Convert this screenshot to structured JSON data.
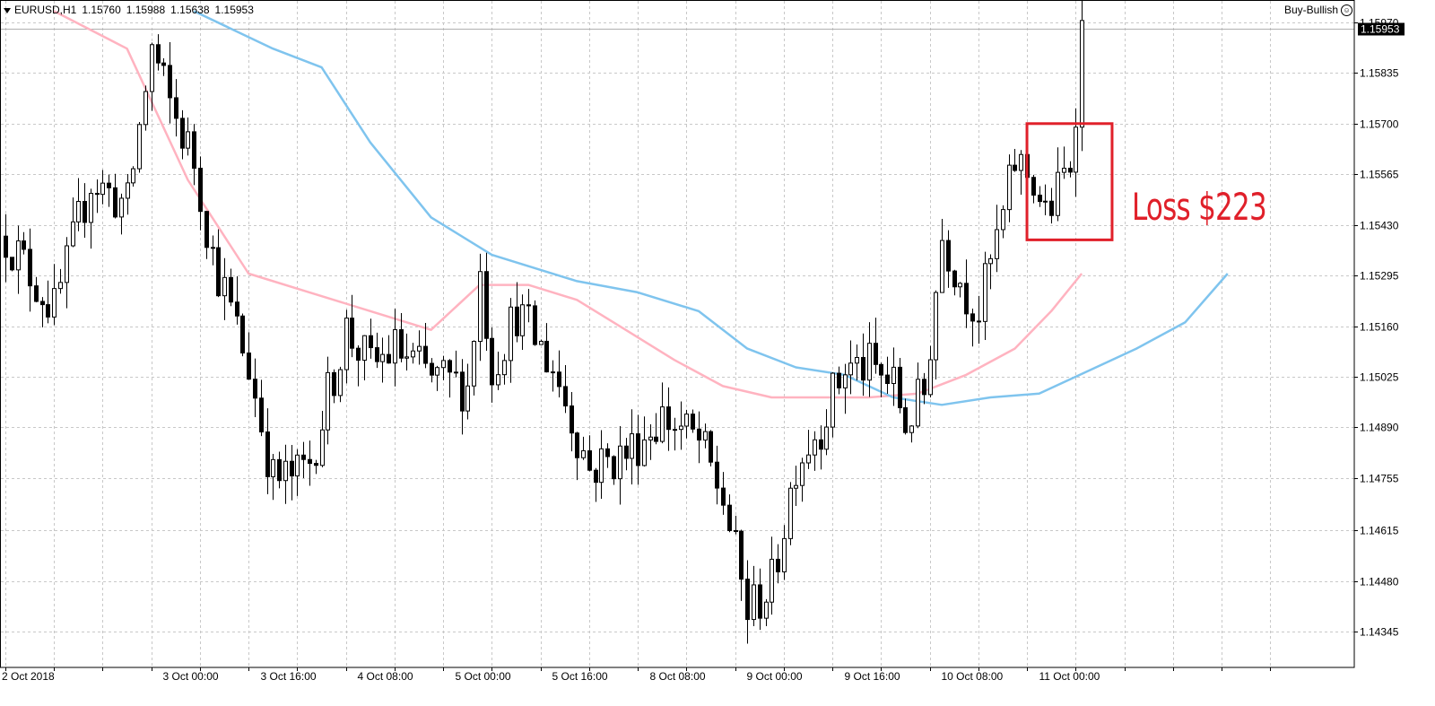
{
  "header": {
    "symbol": "EURUSD,H1",
    "open": "1.15760",
    "high": "1.15988",
    "low": "1.15638",
    "close": "1.15953"
  },
  "expert": {
    "name": "Buy-Bullish",
    "icon": "smiley-icon"
  },
  "annotation": {
    "text": "Loss $223",
    "color": "#e0202a"
  },
  "colors": {
    "bull_body": "#ffffff",
    "bear_body": "#000000",
    "ma_fast": "#ffb3c0",
    "ma_slow": "#7fc4ee",
    "grid": "#c8c8c8",
    "price_tag_bg": "#000000",
    "price_tag_text": "#ffffff"
  },
  "chart_data": {
    "type": "candlestick",
    "symbol": "EURUSD",
    "timeframe": "H1",
    "ylim": [
      1.1425,
      1.1602
    ],
    "y_ticks": [
      1.1597,
      1.15835,
      1.157,
      1.15565,
      1.1543,
      1.15295,
      1.1516,
      1.15025,
      1.1489,
      1.14755,
      1.14615,
      1.1448,
      1.14345
    ],
    "y_tick_labels": [
      "1.15970",
      "1.15835",
      "1.15700",
      "1.15565",
      "1.15430",
      "1.15295",
      "1.15160",
      "1.15025",
      "1.14890",
      "1.14755",
      "1.14615",
      "1.14480",
      "1.14345"
    ],
    "current_price": 1.15953,
    "current_price_label": "1.15953",
    "x_labels": [
      "2 Oct 2018",
      "3 Oct 00:00",
      "3 Oct 16:00",
      "4 Oct 08:00",
      "5 Oct 00:00",
      "5 Oct 16:00",
      "8 Oct 08:00",
      "9 Oct 00:00",
      "9 Oct 16:00",
      "10 Oct 08:00",
      "11 Oct 00:00"
    ],
    "x_label_bar_index": [
      0,
      30,
      46,
      62,
      78,
      94,
      110,
      126,
      142,
      158,
      174
    ],
    "bar_count": 208,
    "candle_keypoints": [
      [
        0,
        1.154
      ],
      [
        8,
        1.152
      ],
      [
        14,
        1.1555
      ],
      [
        20,
        1.1548
      ],
      [
        24,
        1.159
      ],
      [
        27,
        1.1575
      ],
      [
        31,
        1.156
      ],
      [
        34,
        1.1535
      ],
      [
        40,
        1.1505
      ],
      [
        44,
        1.1475
      ],
      [
        48,
        1.1476
      ],
      [
        50,
        1.148
      ],
      [
        56,
        1.1515
      ],
      [
        60,
        1.1505
      ],
      [
        64,
        1.151
      ],
      [
        70,
        1.1502
      ],
      [
        76,
        1.15
      ],
      [
        78,
        1.153
      ],
      [
        80,
        1.1505
      ],
      [
        84,
        1.152
      ],
      [
        90,
        1.1505
      ],
      [
        96,
        1.1478
      ],
      [
        102,
        1.1482
      ],
      [
        108,
        1.1492
      ],
      [
        114,
        1.1485
      ],
      [
        118,
        1.147
      ],
      [
        122,
        1.144
      ],
      [
        126,
        1.1447
      ],
      [
        130,
        1.148
      ],
      [
        134,
        1.149
      ],
      [
        138,
        1.1505
      ],
      [
        142,
        1.1505
      ],
      [
        146,
        1.15
      ],
      [
        148,
        1.149
      ],
      [
        151,
        1.1498
      ],
      [
        154,
        1.154
      ],
      [
        158,
        1.1525
      ],
      [
        160,
        1.152
      ],
      [
        164,
        1.1545
      ],
      [
        166,
        1.156
      ],
      [
        169,
        1.1555
      ],
      [
        171,
        1.1545
      ],
      [
        172,
        1.1548
      ],
      [
        175,
        1.156
      ],
      [
        176,
        1.1576
      ],
      [
        177,
        1.1595
      ]
    ],
    "ma_fast": {
      "color": "#ffb3c0",
      "points": [
        [
          8,
          1.16
        ],
        [
          20,
          1.159
        ],
        [
          30,
          1.1555
        ],
        [
          40,
          1.153
        ],
        [
          50,
          1.1525
        ],
        [
          60,
          1.152
        ],
        [
          70,
          1.1515
        ],
        [
          78,
          1.1527
        ],
        [
          86,
          1.1527
        ],
        [
          94,
          1.1523
        ],
        [
          102,
          1.1515
        ],
        [
          110,
          1.1507
        ],
        [
          118,
          1.15
        ],
        [
          126,
          1.1497
        ],
        [
          134,
          1.1497
        ],
        [
          142,
          1.1497
        ],
        [
          150,
          1.1498
        ],
        [
          158,
          1.1503
        ],
        [
          166,
          1.151
        ],
        [
          172,
          1.152
        ],
        [
          177,
          1.153
        ]
      ]
    },
    "ma_slow": {
      "color": "#7fc4ee",
      "points": [
        [
          31,
          1.16
        ],
        [
          44,
          1.159
        ],
        [
          52,
          1.1585
        ],
        [
          60,
          1.1565
        ],
        [
          70,
          1.1545
        ],
        [
          80,
          1.1535
        ],
        [
          94,
          1.1528
        ],
        [
          104,
          1.1525
        ],
        [
          114,
          1.152
        ],
        [
          122,
          1.151
        ],
        [
          130,
          1.1505
        ],
        [
          138,
          1.1503
        ],
        [
          146,
          1.1497
        ],
        [
          154,
          1.1495
        ],
        [
          162,
          1.1497
        ],
        [
          170,
          1.1498
        ],
        [
          178,
          1.1504
        ],
        [
          186,
          1.151
        ],
        [
          194,
          1.1517
        ],
        [
          201,
          1.153
        ]
      ]
    },
    "trade_box": {
      "bar_start": 168,
      "bar_end": 182,
      "price_top": 1.157,
      "price_bottom": 1.1539
    }
  }
}
